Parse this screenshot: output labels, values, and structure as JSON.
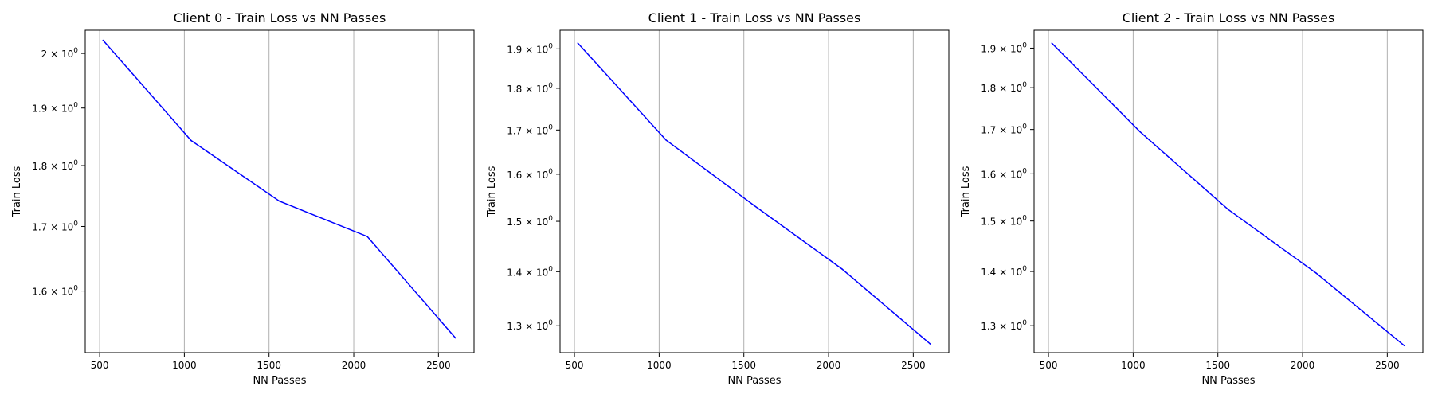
{
  "chart_data": [
    {
      "type": "line",
      "title": "Client 0 - Train Loss vs NN Passes",
      "xlabel": "NN Passes",
      "ylabel": "Train Loss",
      "yscale": "log",
      "xlim": [
        415,
        2710
      ],
      "ylim": [
        1.51,
        2.044
      ],
      "xticks": [
        500,
        1000,
        1500,
        2000,
        2500
      ],
      "yticks": [
        {
          "value": 1.6,
          "mantissa": "1.6",
          "base": "10",
          "exp": "0"
        },
        {
          "value": 1.7,
          "mantissa": "1.7",
          "base": "10",
          "exp": "0"
        },
        {
          "value": 1.8,
          "mantissa": "1.8",
          "base": "10",
          "exp": "0"
        },
        {
          "value": 1.9,
          "mantissa": "1.9",
          "base": "10",
          "exp": "0"
        },
        {
          "value": 2.0,
          "mantissa": "2",
          "base": "10",
          "exp": "0"
        }
      ],
      "grid": "x-major",
      "color": "#0000ff",
      "series": [
        {
          "x": [
            520,
            1040,
            1560,
            2080,
            2600
          ],
          "y": [
            2.025,
            1.843,
            1.741,
            1.684,
            1.531
          ]
        }
      ]
    },
    {
      "type": "line",
      "title": "Client 1 - Train Loss vs NN Passes",
      "xlabel": "NN Passes",
      "ylabel": "Train Loss",
      "yscale": "log",
      "xlim": [
        415,
        2710
      ],
      "ylim": [
        1.253,
        1.949
      ],
      "xticks": [
        500,
        1000,
        1500,
        2000,
        2500
      ],
      "yticks": [
        {
          "value": 1.3,
          "mantissa": "1.3",
          "base": "10",
          "exp": "0"
        },
        {
          "value": 1.4,
          "mantissa": "1.4",
          "base": "10",
          "exp": "0"
        },
        {
          "value": 1.5,
          "mantissa": "1.5",
          "base": "10",
          "exp": "0"
        },
        {
          "value": 1.6,
          "mantissa": "1.6",
          "base": "10",
          "exp": "0"
        },
        {
          "value": 1.7,
          "mantissa": "1.7",
          "base": "10",
          "exp": "0"
        },
        {
          "value": 1.8,
          "mantissa": "1.8",
          "base": "10",
          "exp": "0"
        },
        {
          "value": 1.9,
          "mantissa": "1.9",
          "base": "10",
          "exp": "0"
        }
      ],
      "grid": "x-major",
      "color": "#0000ff",
      "series": [
        {
          "x": [
            520,
            1040,
            1560,
            2080,
            2600
          ],
          "y": [
            1.915,
            1.677,
            1.533,
            1.405,
            1.268
          ]
        }
      ]
    },
    {
      "type": "line",
      "title": "Client 2 - Train Loss vs NN Passes",
      "xlabel": "NN Passes",
      "ylabel": "Train Loss",
      "yscale": "log",
      "xlim": [
        415,
        2710
      ],
      "ylim": [
        1.253,
        1.947
      ],
      "xticks": [
        500,
        1000,
        1500,
        2000,
        2500
      ],
      "yticks": [
        {
          "value": 1.3,
          "mantissa": "1.3",
          "base": "10",
          "exp": "0"
        },
        {
          "value": 1.4,
          "mantissa": "1.4",
          "base": "10",
          "exp": "0"
        },
        {
          "value": 1.5,
          "mantissa": "1.5",
          "base": "10",
          "exp": "0"
        },
        {
          "value": 1.6,
          "mantissa": "1.6",
          "base": "10",
          "exp": "0"
        },
        {
          "value": 1.7,
          "mantissa": "1.7",
          "base": "10",
          "exp": "0"
        },
        {
          "value": 1.8,
          "mantissa": "1.8",
          "base": "10",
          "exp": "0"
        },
        {
          "value": 1.9,
          "mantissa": "1.9",
          "base": "10",
          "exp": "0"
        }
      ],
      "grid": "x-major",
      "color": "#0000ff",
      "series": [
        {
          "x": [
            520,
            1040,
            1560,
            2080,
            2600
          ],
          "y": [
            1.913,
            1.695,
            1.524,
            1.397,
            1.265
          ]
        }
      ]
    }
  ]
}
